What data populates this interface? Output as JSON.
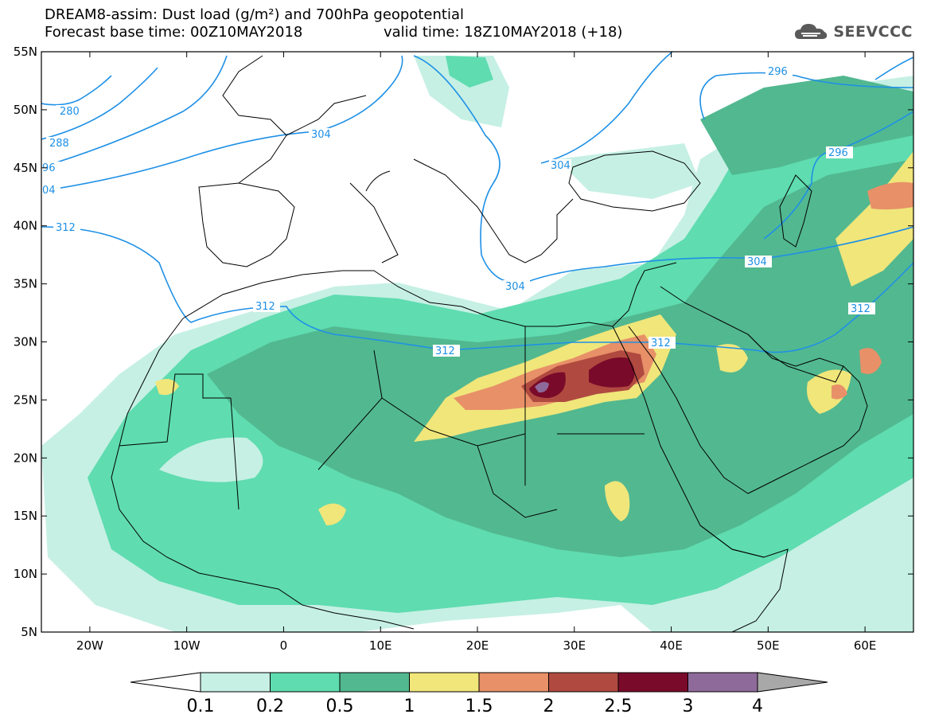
{
  "title": {
    "line1": "DREAM8-assim: Dust load (g/m²) and 700hPa geopotential",
    "line2_left": "Forecast base time: 00Z10MAY2018",
    "line2_right": "valid time: 18Z10MAY2018 (+18)"
  },
  "logo": {
    "text": "SEEVCCC",
    "icon": "cloud-icon"
  },
  "axes": {
    "lat_ticks": [
      "55N",
      "50N",
      "45N",
      "40N",
      "35N",
      "30N",
      "25N",
      "20N",
      "15N",
      "10N",
      "5N"
    ],
    "lon_ticks": [
      "20W",
      "10W",
      "0",
      "10E",
      "20E",
      "30E",
      "40E",
      "50E",
      "60E"
    ],
    "lat_range": [
      5,
      55
    ],
    "lon_range": [
      -25,
      65
    ]
  },
  "colorbar": {
    "labels": [
      "0.1",
      "0.2",
      "0.5",
      "1",
      "1.5",
      "2",
      "2.5",
      "3",
      "4"
    ],
    "colors": [
      "#c6f0e4",
      "#5fdcb0",
      "#52b890",
      "#f0e67a",
      "#e89068",
      "#b04a40",
      "#7a0a2a",
      "#8e6a9a"
    ],
    "under_color": "#ffffff",
    "over_color": "#a8a8a8"
  },
  "contour_labels": [
    {
      "text": "280"
    },
    {
      "text": "288"
    },
    {
      "text": "96"
    },
    {
      "text": "04"
    },
    {
      "text": "304"
    },
    {
      "text": "312"
    },
    {
      "text": "312"
    },
    {
      "text": "312"
    },
    {
      "text": "304"
    },
    {
      "text": "296"
    },
    {
      "text": "296"
    },
    {
      "text": "304"
    },
    {
      "text": "312"
    },
    {
      "text": "312"
    },
    {
      "text": "304"
    }
  ],
  "contour_color": "#1e90e6"
}
